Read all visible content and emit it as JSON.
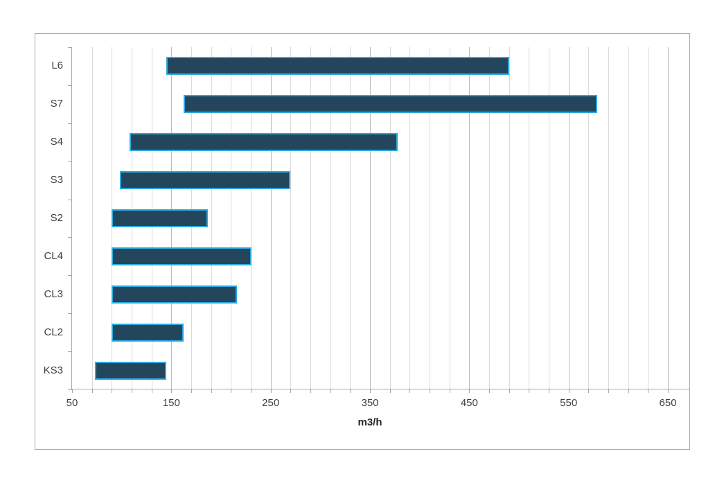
{
  "chart_data": {
    "type": "bar",
    "orientation": "horizontal",
    "title": "",
    "xlabel": "m3/h",
    "ylabel": "",
    "categories": [
      "L6",
      "S7",
      "S4",
      "S3",
      "S2",
      "CL4",
      "CL3",
      "CL2",
      "KS3"
    ],
    "bars": [
      {
        "label": "L6",
        "start": 145,
        "end": 490
      },
      {
        "label": "S7",
        "start": 162,
        "end": 579
      },
      {
        "label": "S4",
        "start": 108,
        "end": 378
      },
      {
        "label": "S3",
        "start": 98,
        "end": 270
      },
      {
        "label": "S2",
        "start": 90,
        "end": 187
      },
      {
        "label": "CL4",
        "start": 90,
        "end": 231
      },
      {
        "label": "CL3",
        "start": 90,
        "end": 216
      },
      {
        "label": "CL2",
        "start": 90,
        "end": 162
      },
      {
        "label": "KS3",
        "start": 73,
        "end": 145
      }
    ],
    "xlim": [
      50,
      673
    ],
    "x_major_ticks": [
      50,
      150,
      250,
      350,
      450,
      550,
      650
    ],
    "x_minor_step": 20,
    "x_minor_max": 650,
    "grid": true,
    "legend": "none",
    "colors": {
      "bar_fill": "#24465c",
      "bar_border": "#29a9e0",
      "gridline_minor": "#d9d9d9",
      "gridline_major": "#bdbdbd",
      "axis_line": "#a6a6a6",
      "frame_border": "#a6a6a6",
      "text": "#3f3f3f"
    }
  }
}
